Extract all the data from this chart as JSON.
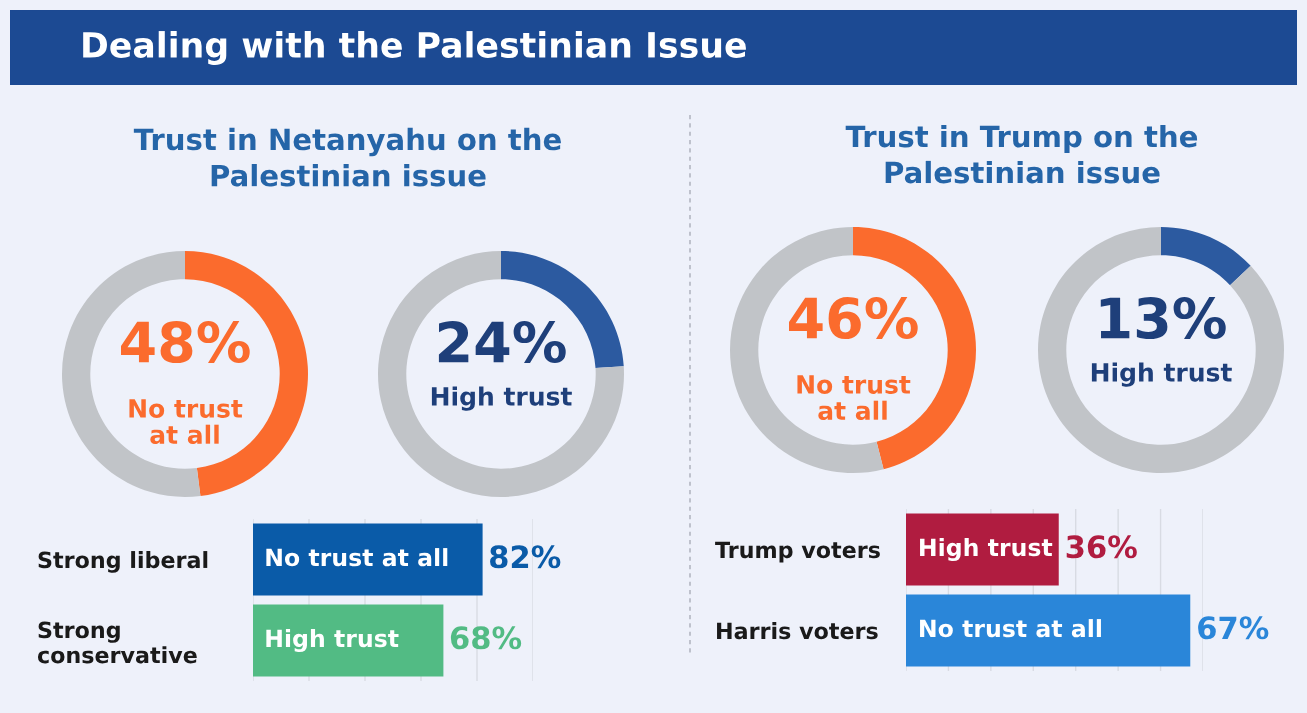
{
  "chart_data": [
    {
      "type": "other",
      "title": "Dealing with the Palestinian Issue"
    },
    {
      "type": "donut",
      "title": "Trust in Netanyahu on the\nPalestinian issue",
      "categories": [
        null,
        null
      ],
      "values": [
        48,
        52
      ],
      "colors": [
        "#fb6b2d",
        "#c1c4c8"
      ],
      "value_labels": [
        "48%",
        null
      ],
      "annotations": [
        "No trust\nat all"
      ]
    },
    {
      "type": "donut",
      "categories": [
        null,
        null
      ],
      "values": [
        24,
        76
      ],
      "colors": [
        "#2c5aa0",
        "#c1c4c8"
      ],
      "value_labels": [
        "24%",
        null
      ],
      "annotations": [
        "High trust"
      ]
    },
    {
      "type": "bar",
      "orientation": "horizontal",
      "categories": [
        "Strong liberal",
        "Strong\nconservative"
      ],
      "series": [
        {
          "name": "No trust at all",
          "color": "#0a5ba8",
          "values": [
            82,
            null
          ],
          "value_labels": [
            "82%",
            null
          ]
        },
        {
          "name": "High trust",
          "color": "#52bb84",
          "values": [
            null,
            68
          ],
          "value_labels": [
            null,
            "68%"
          ]
        }
      ],
      "xlim": [
        0,
        100
      ],
      "xticks": [
        {
          "value": 0,
          "label": null
        },
        {
          "value": 20,
          "label": null
        },
        {
          "value": 40,
          "label": null
        },
        {
          "value": 60,
          "label": null
        },
        {
          "value": 80,
          "label": null
        },
        {
          "value": 100,
          "label": null
        }
      ],
      "grid": "x",
      "tick_labels": "y"
    },
    {
      "type": "donut",
      "title": "Trust in Trump on the\nPalestinian issue",
      "categories": [
        null,
        null
      ],
      "values": [
        46,
        54
      ],
      "colors": [
        "#fb6b2d",
        "#c1c4c8"
      ],
      "value_labels": [
        "46%",
        null
      ],
      "annotations": [
        "No trust\nat all"
      ]
    },
    {
      "type": "donut",
      "categories": [
        null,
        null
      ],
      "values": [
        13,
        87
      ],
      "colors": [
        "#2c5aa0",
        "#c1c4c8"
      ],
      "value_labels": [
        "13%",
        null
      ],
      "annotations": [
        "High trust"
      ]
    },
    {
      "type": "bar",
      "orientation": "horizontal",
      "categories": [
        "Trump voters",
        "Harris voters"
      ],
      "series": [
        {
          "name": "High trust",
          "color": "#b01c40",
          "values": [
            36,
            null
          ],
          "value_labels": [
            "36%",
            null
          ]
        },
        {
          "name": "No trust at all",
          "color": "#2a86d9",
          "values": [
            null,
            67
          ],
          "value_labels": [
            null,
            "67%"
          ]
        }
      ],
      "xlim": [
        0,
        70
      ],
      "xticks": [
        {
          "value": 0,
          "label": null
        },
        {
          "value": 10,
          "label": null
        },
        {
          "value": 20,
          "label": null
        },
        {
          "value": 30,
          "label": null
        },
        {
          "value": 40,
          "label": null
        },
        {
          "value": 50,
          "label": null
        },
        {
          "value": 60,
          "label": null
        },
        {
          "value": 70,
          "label": null
        }
      ],
      "grid": "x",
      "tick_labels": "y"
    }
  ]
}
